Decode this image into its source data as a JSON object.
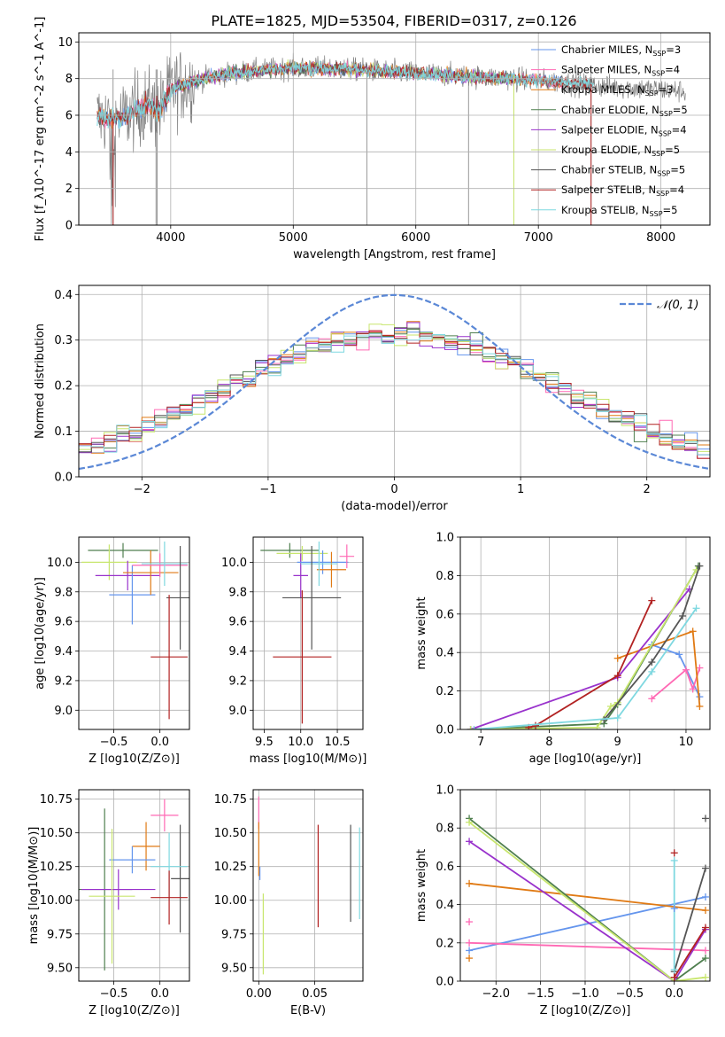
{
  "figure": {
    "title": "PLATE=1825, MJD=53504, FIBERID=0317, z=0.126"
  },
  "colors": {
    "chabrier_miles": "#6495ed",
    "salpeter_miles": "#ff69b4",
    "kroupa_miles": "#e07a14",
    "chabrier_elodie": "#4f7f4f",
    "salpeter_elodie": "#9932cc",
    "kroupa_elodie": "#c8e66e",
    "chabrier_stelib": "#555555",
    "salpeter_stelib": "#b22222",
    "kroupa_stelib": "#7fd8e0",
    "data": "#808080",
    "normal": "#5b88d6"
  },
  "chart_data": [
    {
      "id": "spectrum",
      "type": "line",
      "xlabel": "wavelength [Angstrom, rest frame]",
      "ylabel": "Flux [f_λ10^-17 erg cm^-2 s^-1 A^-1]",
      "xlim": [
        3250,
        8400
      ],
      "ylim": [
        0,
        10.5
      ],
      "xticks": [
        4000,
        5000,
        6000,
        7000,
        8000
      ],
      "yticks": [
        0,
        2,
        4,
        6,
        8,
        10
      ],
      "legend_position": "top-right",
      "legend": [
        {
          "label": "Chabrier MILES, N",
          "sub": "SSP",
          "suffix": "=3",
          "color": "chabrier_miles"
        },
        {
          "label": "Salpeter MILES, N",
          "sub": "SSP",
          "suffix": "=4",
          "color": "salpeter_miles"
        },
        {
          "label": "Kroupa MILES, N",
          "sub": "SSP",
          "suffix": "=3",
          "color": "kroupa_miles"
        },
        {
          "label": "Chabrier ELODIE, N",
          "sub": "SSP",
          "suffix": "=5",
          "color": "chabrier_elodie"
        },
        {
          "label": "Salpeter ELODIE, N",
          "sub": "SSP",
          "suffix": "=4",
          "color": "salpeter_elodie"
        },
        {
          "label": "Kroupa ELODIE, N",
          "sub": "SSP",
          "suffix": "=5",
          "color": "kroupa_elodie"
        },
        {
          "label": "Chabrier STELIB, N",
          "sub": "SSP",
          "suffix": "=5",
          "color": "chabrier_stelib"
        },
        {
          "label": "Salpeter STELIB, N",
          "sub": "SSP",
          "suffix": "=4",
          "color": "salpeter_stelib"
        },
        {
          "label": "Kroupa STELIB, N",
          "sub": "SSP",
          "suffix": "=5",
          "color": "kroupa_stelib"
        }
      ],
      "spectrum_shape": [
        [
          3400,
          5.9
        ],
        [
          3600,
          5.8
        ],
        [
          3800,
          6.6
        ],
        [
          3900,
          6.2
        ],
        [
          4000,
          7.4
        ],
        [
          4200,
          7.9
        ],
        [
          4500,
          8.3
        ],
        [
          5000,
          8.6
        ],
        [
          5500,
          8.5
        ],
        [
          6000,
          8.3
        ],
        [
          6500,
          8.1
        ],
        [
          7000,
          7.9
        ],
        [
          7500,
          7.6
        ],
        [
          8000,
          7.4
        ],
        [
          8200,
          7.3
        ]
      ],
      "spikes": [
        3530,
        3880,
        3890,
        5600,
        6430,
        6800,
        7430
      ]
    },
    {
      "id": "residuals",
      "type": "line",
      "xlabel": "(data-model)/error",
      "ylabel": "Normed distribution",
      "xlim": [
        -2.5,
        2.5
      ],
      "ylim": [
        0,
        0.42
      ],
      "xticks": [
        -2,
        -1,
        0,
        1,
        2
      ],
      "yticks": [
        0.0,
        0.1,
        0.2,
        0.3,
        0.4
      ],
      "legend_position": "top-right",
      "normal_label": "𝒩(0, 1)",
      "bin_width": 0.1
    },
    {
      "id": "age_vs_Z",
      "type": "scatter",
      "xlabel": "Z [log10(Z/Z⊙)]",
      "ylabel": "age [log10(age/yr)]",
      "xlim": [
        -0.88,
        0.32
      ],
      "ylim": [
        8.87,
        10.17
      ],
      "xticks": [
        -0.5,
        0.0
      ],
      "yticks": [
        9.0,
        9.2,
        9.4,
        9.6,
        9.8,
        10.0
      ],
      "points": [
        {
          "x": -0.4,
          "y": 10.08,
          "xerr": 0.38,
          "yerr": 0.05,
          "color": "chabrier_elodie"
        },
        {
          "x": -0.55,
          "y": 10.0,
          "xerr": 0.3,
          "yerr": 0.12,
          "color": "kroupa_elodie"
        },
        {
          "x": -0.35,
          "y": 9.91,
          "xerr": 0.35,
          "yerr": 0.1,
          "color": "salpeter_elodie"
        },
        {
          "x": -0.3,
          "y": 9.78,
          "xerr": 0.25,
          "yerr": 0.2,
          "color": "chabrier_miles"
        },
        {
          "x": -0.1,
          "y": 9.93,
          "xerr": 0.3,
          "yerr": 0.15,
          "color": "kroupa_miles"
        },
        {
          "x": 0.0,
          "y": 9.98,
          "xerr": 0.3,
          "yerr": 0.08,
          "color": "salpeter_miles"
        },
        {
          "x": 0.05,
          "y": 9.99,
          "xerr": 0.25,
          "yerr": 0.15,
          "color": "kroupa_stelib"
        },
        {
          "x": 0.22,
          "y": 9.76,
          "xerr": 0.15,
          "yerr": 0.35,
          "color": "chabrier_stelib"
        },
        {
          "x": 0.1,
          "y": 9.36,
          "xerr": 0.2,
          "yerr": 0.42,
          "color": "salpeter_stelib"
        }
      ]
    },
    {
      "id": "age_vs_mass",
      "type": "scatter",
      "xlabel": "mass [log10(M/M⊙)]",
      "ylabel": "",
      "xlim": [
        9.35,
        10.85
      ],
      "ylim": [
        8.87,
        10.17
      ],
      "xticks": [
        9.5,
        10.0,
        10.5
      ],
      "yticks": [
        9.0,
        9.2,
        9.4,
        9.6,
        9.8,
        10.0
      ],
      "points": [
        {
          "x": 9.85,
          "y": 10.08,
          "xerr": 0.4,
          "yerr": 0.05,
          "color": "chabrier_elodie"
        },
        {
          "x": 10.02,
          "y": 10.06,
          "xerr": 0.35,
          "yerr": 0.05,
          "color": "kroupa_elodie"
        },
        {
          "x": 10.0,
          "y": 9.91,
          "xerr": 0.1,
          "yerr": 0.15,
          "color": "salpeter_elodie"
        },
        {
          "x": 10.3,
          "y": 10.0,
          "xerr": 0.35,
          "yerr": 0.08,
          "color": "chabrier_miles"
        },
        {
          "x": 10.42,
          "y": 9.95,
          "xerr": 0.2,
          "yerr": 0.12,
          "color": "kroupa_miles"
        },
        {
          "x": 10.63,
          "y": 10.04,
          "xerr": 0.1,
          "yerr": 0.08,
          "color": "salpeter_miles"
        },
        {
          "x": 10.25,
          "y": 9.99,
          "xerr": 0.25,
          "yerr": 0.15,
          "color": "kroupa_stelib"
        },
        {
          "x": 10.15,
          "y": 9.76,
          "xerr": 0.4,
          "yerr": 0.35,
          "color": "chabrier_stelib"
        },
        {
          "x": 10.02,
          "y": 9.36,
          "xerr": 0.4,
          "yerr": 0.45,
          "color": "salpeter_stelib"
        }
      ]
    },
    {
      "id": "weight_vs_age",
      "type": "line",
      "xlabel": "age [log10(age/yr)]",
      "ylabel": "mass weight",
      "xlim": [
        6.7,
        10.35
      ],
      "ylim": [
        0,
        1.0
      ],
      "xticks": [
        7,
        8,
        9,
        10
      ],
      "yticks": [
        0.0,
        0.2,
        0.4,
        0.6,
        0.8,
        1.0
      ],
      "series": [
        {
          "color": "chabrier_miles",
          "x": [
            9.5,
            9.9,
            10.2
          ],
          "y": [
            0.44,
            0.39,
            0.17
          ]
        },
        {
          "color": "salpeter_miles",
          "x": [
            9.5,
            10.0,
            10.1,
            10.2
          ],
          "y": [
            0.16,
            0.31,
            0.21,
            0.32
          ]
        },
        {
          "color": "kroupa_miles",
          "x": [
            9.0,
            10.1,
            10.2
          ],
          "y": [
            0.37,
            0.51,
            0.12
          ]
        },
        {
          "color": "chabrier_elodie",
          "x": [
            6.85,
            8.8,
            9.0,
            10.18
          ],
          "y": [
            0.0,
            0.03,
            0.13,
            0.85
          ]
        },
        {
          "color": "salpeter_elodie",
          "x": [
            6.85,
            9.0,
            10.05
          ],
          "y": [
            0.0,
            0.27,
            0.73
          ]
        },
        {
          "color": "kroupa_elodie",
          "x": [
            6.85,
            8.7,
            8.9,
            9.0,
            10.15
          ],
          "y": [
            0.0,
            0.01,
            0.12,
            0.14,
            0.83
          ]
        },
        {
          "color": "chabrier_stelib",
          "x": [
            8.8,
            9.5,
            9.95,
            10.2
          ],
          "y": [
            0.05,
            0.35,
            0.59,
            0.85
          ]
        },
        {
          "color": "salpeter_stelib",
          "x": [
            7.7,
            7.8,
            9.0,
            9.5
          ],
          "y": [
            0.01,
            0.02,
            0.28,
            0.67
          ]
        },
        {
          "color": "kroupa_stelib",
          "x": [
            6.9,
            9.0,
            9.5,
            10.15
          ],
          "y": [
            0.0,
            0.06,
            0.3,
            0.63
          ]
        }
      ]
    },
    {
      "id": "mass_vs_Z",
      "type": "scatter",
      "xlabel": "Z [log10(Z/Z⊙)]",
      "ylabel": "mass [log10(M/M⊙)]",
      "xlim": [
        -0.88,
        0.32
      ],
      "ylim": [
        9.4,
        10.82
      ],
      "xticks": [
        -0.5,
        0.0
      ],
      "yticks": [
        9.5,
        9.75,
        10.0,
        10.25,
        10.5,
        10.75
      ],
      "points": [
        {
          "x": 0.05,
          "y": 10.63,
          "xerr": 0.15,
          "yerr": 0.12,
          "color": "salpeter_miles"
        },
        {
          "x": -0.15,
          "y": 10.4,
          "xerr": 0.15,
          "yerr": 0.18,
          "color": "kroupa_miles"
        },
        {
          "x": -0.3,
          "y": 10.3,
          "xerr": 0.25,
          "yerr": 0.1,
          "color": "chabrier_miles"
        },
        {
          "x": 0.22,
          "y": 10.16,
          "xerr": 0.1,
          "yerr": 0.4,
          "color": "chabrier_stelib"
        },
        {
          "x": 0.1,
          "y": 10.25,
          "xerr": 0.2,
          "yerr": 0.25,
          "color": "kroupa_stelib"
        },
        {
          "x": -0.6,
          "y": 10.08,
          "xerr": 0.3,
          "yerr": 0.6,
          "color": "chabrier_elodie"
        },
        {
          "x": -0.45,
          "y": 10.08,
          "xerr": 0.4,
          "yerr": 0.15,
          "color": "salpeter_elodie"
        },
        {
          "x": -0.52,
          "y": 10.03,
          "xerr": 0.25,
          "yerr": 0.5,
          "color": "kroupa_elodie"
        },
        {
          "x": 0.1,
          "y": 10.02,
          "xerr": 0.2,
          "yerr": 0.2,
          "color": "salpeter_stelib"
        }
      ]
    },
    {
      "id": "mass_vs_ebv",
      "type": "scatter",
      "xlabel": "E(B-V)",
      "ylabel": "",
      "xlim": [
        -0.005,
        0.093
      ],
      "ylim": [
        9.4,
        10.82
      ],
      "xticks": [
        0.0,
        0.05
      ],
      "yticks": [
        9.5,
        9.75,
        10.0,
        10.25,
        10.5,
        10.75
      ],
      "points": [
        {
          "x": 0.0,
          "y": 10.65,
          "xerr": 0,
          "yerr": 0.12,
          "color": "salpeter_miles"
        },
        {
          "x": 0.0,
          "y": 10.38,
          "xerr": 0,
          "yerr": 0.2,
          "color": "kroupa_miles"
        },
        {
          "x": 0.001,
          "y": 10.2,
          "xerr": 0,
          "yerr": 0.05,
          "color": "chabrier_miles"
        },
        {
          "x": 0.004,
          "y": 9.75,
          "xerr": 0,
          "yerr": 0.3,
          "color": "kroupa_elodie"
        },
        {
          "x": 0.053,
          "y": 10.18,
          "xerr": 0,
          "yerr": 0.38,
          "color": "salpeter_stelib"
        },
        {
          "x": 0.082,
          "y": 10.2,
          "xerr": 0,
          "yerr": 0.36,
          "color": "chabrier_stelib"
        },
        {
          "x": 0.09,
          "y": 10.2,
          "xerr": 0,
          "yerr": 0.34,
          "color": "kroupa_stelib"
        }
      ]
    },
    {
      "id": "weight_vs_Z",
      "type": "line",
      "xlabel": "Z [log10(Z/Z⊙)]",
      "ylabel": "mass weight",
      "xlim": [
        -2.4,
        0.4
      ],
      "ylim": [
        0,
        1.0
      ],
      "xticks": [
        -2.0,
        -1.5,
        -1.0,
        -0.5,
        0.0
      ],
      "yticks": [
        0.0,
        0.2,
        0.4,
        0.6,
        0.8,
        1.0
      ],
      "series": [
        {
          "color": "chabrier_miles",
          "x": [
            -2.3,
            0.35
          ],
          "y": [
            0.16,
            0.44
          ]
        },
        {
          "color": "salpeter_miles",
          "x": [
            -2.3,
            0.35
          ],
          "y": [
            0.2,
            0.16
          ]
        },
        {
          "color": "kroupa_miles",
          "x": [
            -2.3,
            0.35
          ],
          "y": [
            0.51,
            0.37
          ]
        },
        {
          "color": "chabrier_elodie",
          "x": [
            -2.3,
            0.0,
            0.35
          ],
          "y": [
            0.85,
            0.0,
            0.12
          ]
        },
        {
          "color": "salpeter_elodie",
          "x": [
            -2.3,
            0.0,
            0.35
          ],
          "y": [
            0.73,
            0.0,
            0.27
          ]
        },
        {
          "color": "kroupa_elodie",
          "x": [
            -2.3,
            0.0,
            0.35
          ],
          "y": [
            0.83,
            0.0,
            0.02
          ]
        },
        {
          "color": "chabrier_stelib",
          "x": [
            0.0,
            0.35
          ],
          "y": [
            0.05,
            0.59
          ]
        },
        {
          "color": "salpeter_stelib",
          "x": [
            0.0,
            0.35
          ],
          "y": [
            0.02,
            0.28
          ]
        },
        {
          "color": "kroupa_stelib",
          "x": [
            0.0,
            0.0
          ],
          "y": [
            0.06,
            0.63
          ]
        }
      ],
      "extra_markers": [
        {
          "color": "salpeter_stelib",
          "x": 0.0,
          "y": 0.67
        },
        {
          "color": "chabrier_miles",
          "x": 0.0,
          "y": 0.38
        },
        {
          "color": "kroupa_miles",
          "x": -2.3,
          "y": 0.12
        },
        {
          "color": "salpeter_miles",
          "x": -2.3,
          "y": 0.31
        },
        {
          "color": "chabrier_stelib",
          "x": 0.35,
          "y": 0.85
        }
      ]
    }
  ]
}
